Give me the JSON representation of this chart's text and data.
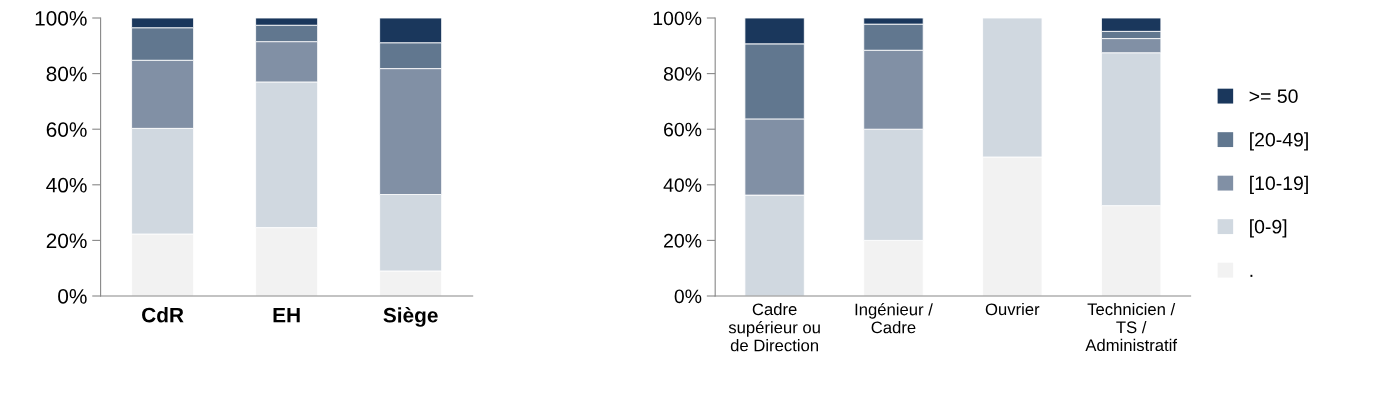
{
  "chart_data": [
    {
      "type": "bar",
      "stacked": true,
      "categories": [
        "CdR",
        "EH",
        "Siège"
      ],
      "ylim": [
        0,
        100
      ],
      "yticks": [
        {
          "value": 0,
          "label": "0%"
        },
        {
          "value": 20,
          "label": "20%"
        },
        {
          "value": 40,
          "label": "40%"
        },
        {
          "value": 60,
          "label": "60%"
        },
        {
          "value": 80,
          "label": "80%"
        },
        {
          "value": 100,
          "label": "100%"
        }
      ],
      "grid": false,
      "legend": false,
      "series": [
        {
          "color": "#f2f2f2",
          "values": [
            22.3,
            24.6,
            9.0
          ]
        },
        {
          "color": "#d0d8e0",
          "values": [
            38.0,
            52.4,
            27.5
          ]
        },
        {
          "color": "#8190a5",
          "values": [
            24.5,
            14.5,
            45.3
          ]
        },
        {
          "color": "#61778f",
          "values": [
            11.7,
            5.9,
            9.3
          ]
        },
        {
          "color": "#1a375c",
          "values": [
            3.5,
            2.6,
            8.9
          ]
        }
      ]
    },
    {
      "type": "bar",
      "stacked": true,
      "categories": [
        "Cadre\nsupérieur ou\nde Direction",
        "Ingénieur /\nCadre",
        "Ouvrier",
        "Technicien /\nTS /\nAdministratif"
      ],
      "ylim": [
        0,
        100
      ],
      "yticks": [
        {
          "value": 0,
          "label": "0%"
        },
        {
          "value": 20,
          "label": "20%"
        },
        {
          "value": 40,
          "label": "40%"
        },
        {
          "value": 60,
          "label": "60%"
        },
        {
          "value": 80,
          "label": "80%"
        },
        {
          "value": 100,
          "label": "100%"
        }
      ],
      "grid": false,
      "legend": "right",
      "series": [
        {
          "name": ".",
          "color": "#f2f2f2",
          "values": [
            0,
            20,
            50,
            32.5
          ]
        },
        {
          "name": "[0-9]",
          "color": "#d0d8e0",
          "values": [
            36.3,
            40,
            50,
            55.0
          ]
        },
        {
          "name": "[10-19]",
          "color": "#8190a5",
          "values": [
            27.4,
            28.4,
            0,
            5.1
          ]
        },
        {
          "name": "[20-49]",
          "color": "#61778f",
          "values": [
            27.0,
            9.4,
            0,
            2.6
          ]
        },
        {
          "name": ">= 50",
          "color": "#1a375c",
          "values": [
            9.3,
            2.2,
            0,
            4.8
          ]
        }
      ]
    }
  ]
}
